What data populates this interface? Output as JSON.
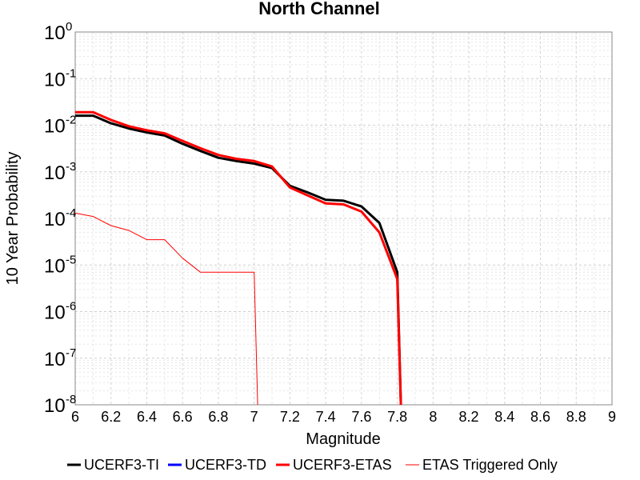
{
  "chart_data": {
    "type": "line",
    "title": "North Channel",
    "xlabel": "Magnitude",
    "ylabel": "10 Year Probability",
    "xlim": [
      6,
      9
    ],
    "ylim": [
      1e-08,
      1
    ],
    "yscale": "log",
    "grid": true,
    "legend_position": "bottom",
    "xticks": [
      "6",
      "6.2",
      "6.4",
      "6.6",
      "6.8",
      "7",
      "7.2",
      "7.4",
      "7.6",
      "7.8",
      "8",
      "8.2",
      "8.4",
      "8.6",
      "8.8",
      "9"
    ],
    "yticks": [
      {
        "base": "10",
        "exp": "0"
      },
      {
        "base": "10",
        "exp": "-1"
      },
      {
        "base": "10",
        "exp": "-2"
      },
      {
        "base": "10",
        "exp": "-3"
      },
      {
        "base": "10",
        "exp": "-4"
      },
      {
        "base": "10",
        "exp": "-5"
      },
      {
        "base": "10",
        "exp": "-6"
      },
      {
        "base": "10",
        "exp": "-7"
      },
      {
        "base": "10",
        "exp": "-8"
      }
    ],
    "series": [
      {
        "name": "UCERF3-TI",
        "color": "#000000",
        "width": 3,
        "x": [
          6.0,
          6.1,
          6.2,
          6.3,
          6.4,
          6.5,
          6.6,
          6.7,
          6.8,
          6.9,
          7.0,
          7.1,
          7.2,
          7.3,
          7.4,
          7.5,
          7.6,
          7.7,
          7.8,
          7.82
        ],
        "y": [
          0.016,
          0.016,
          0.011,
          0.0085,
          0.007,
          0.006,
          0.004,
          0.0028,
          0.002,
          0.0017,
          0.0015,
          0.0012,
          0.0005,
          0.00036,
          0.00025,
          0.00024,
          0.00018,
          8e-05,
          7e-06,
          1e-08
        ]
      },
      {
        "name": "UCERF3-TD",
        "color": "#0000ff",
        "width": 3,
        "x": [],
        "y": []
      },
      {
        "name": "UCERF3-ETAS",
        "color": "#ff0000",
        "width": 3,
        "x": [
          6.0,
          6.1,
          6.2,
          6.3,
          6.4,
          6.5,
          6.6,
          6.7,
          6.8,
          6.9,
          7.0,
          7.1,
          7.2,
          7.3,
          7.4,
          7.5,
          7.6,
          7.7,
          7.8,
          7.82
        ],
        "y": [
          0.019,
          0.019,
          0.013,
          0.0095,
          0.0078,
          0.0067,
          0.0046,
          0.0032,
          0.0023,
          0.0019,
          0.0017,
          0.0013,
          0.00046,
          0.00031,
          0.00021,
          0.0002,
          0.00014,
          5e-05,
          5e-06,
          1e-08
        ]
      },
      {
        "name": "ETAS Triggered Only",
        "color": "#ff0000",
        "width": 1,
        "x": [
          6.0,
          6.1,
          6.2,
          6.3,
          6.4,
          6.5,
          6.6,
          6.7,
          6.8,
          6.9,
          7.0,
          7.02
        ],
        "y": [
          0.00013,
          0.00011,
          7e-05,
          5.5e-05,
          3.5e-05,
          3.5e-05,
          1.4e-05,
          7e-06,
          7e-06,
          7e-06,
          7e-06,
          1e-08
        ]
      }
    ]
  }
}
